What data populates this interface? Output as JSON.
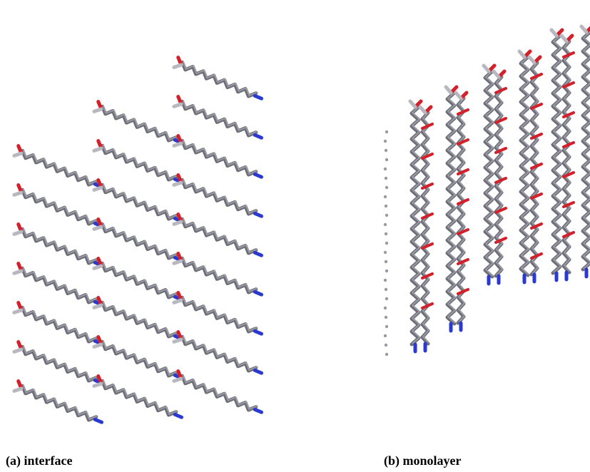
{
  "panels": [
    {
      "caption": "(a) interface"
    },
    {
      "caption": "(b) monolayer"
    }
  ]
}
